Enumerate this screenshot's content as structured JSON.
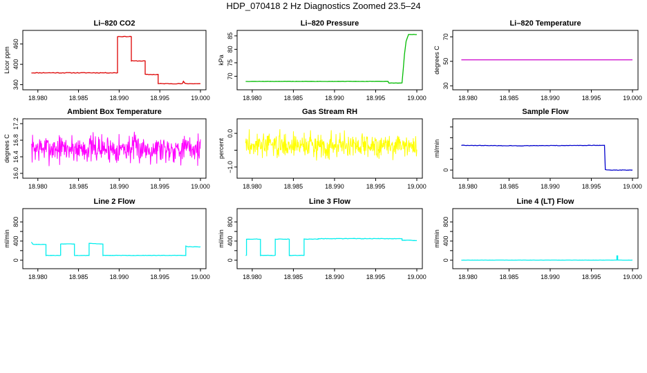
{
  "page": {
    "title": "HDP_070418  2 Hz Diagnostics Zoomed 23.5–24"
  },
  "chart_data": [
    {
      "type": "line",
      "title": "Li–820 CO2",
      "xlabel": "",
      "ylabel": "Licor ppm",
      "xlim": [
        18.979,
        19.0
      ],
      "ylim": [
        333,
        492
      ],
      "xticks": [
        18.98,
        18.985,
        18.99,
        18.995,
        19.0
      ],
      "xtick_labels": [
        "18.980",
        "18.985",
        "18.990",
        "18.995",
        "19.000"
      ],
      "yticks": [
        340,
        400,
        460
      ],
      "ytick_labels": [
        "340",
        "400",
        "460"
      ],
      "color": "#dd0000",
      "noise": 0.9,
      "series": [
        {
          "x": [
            18.9792,
            18.9898,
            18.9898,
            18.9915,
            18.9915,
            18.9932,
            18.9932,
            18.9948,
            18.9948,
            18.9978,
            18.9979,
            18.9981,
            19.0
          ]
        },
        {
          "y": [
            375,
            375,
            482,
            482,
            410,
            410,
            370,
            370,
            343,
            343,
            350,
            343,
            343
          ]
        }
      ]
    },
    {
      "type": "line",
      "title": "Li–820 Pressure",
      "xlabel": "",
      "ylabel": "kPa",
      "xlim": [
        18.979,
        19.0
      ],
      "ylim": [
        66,
        86
      ],
      "xticks": [
        18.98,
        18.985,
        18.99,
        18.995,
        19.0
      ],
      "xtick_labels": [
        "18.980",
        "18.985",
        "18.990",
        "18.995",
        "19.000"
      ],
      "yticks": [
        70,
        75,
        80,
        85
      ],
      "ytick_labels": [
        "70",
        "75",
        "80",
        "85"
      ],
      "color": "#00bb00",
      "noise": 0.05,
      "series": [
        {
          "x": [
            18.9792,
            18.9965,
            18.9966,
            18.9982,
            18.9985,
            18.9987,
            18.999,
            19.0
          ]
        },
        {
          "y": [
            68.1,
            68.1,
            67.5,
            67.5,
            78,
            83,
            85.5,
            85.5
          ]
        }
      ]
    },
    {
      "type": "line",
      "title": "Li–820 Temperature",
      "xlabel": "",
      "ylabel": "degrees C",
      "xlim": [
        18.979,
        19.0
      ],
      "ylim": [
        29,
        73
      ],
      "xticks": [
        18.98,
        18.985,
        18.99,
        18.995,
        19.0
      ],
      "xtick_labels": [
        "18.980",
        "18.985",
        "18.990",
        "18.995",
        "19.000"
      ],
      "yticks": [
        30,
        50,
        70
      ],
      "ytick_labels": [
        "30",
        "50",
        "70"
      ],
      "color": "#cc00cc",
      "noise": 0,
      "series": [
        {
          "x": [
            18.9792,
            19.0
          ]
        },
        {
          "y": [
            51.2,
            51.2
          ]
        }
      ]
    },
    {
      "type": "line",
      "title": "Ambient Box Temperature",
      "xlabel": "",
      "ylabel": "degrees C",
      "xlim": [
        18.979,
        19.0
      ],
      "ylim": [
        15.95,
        17.25
      ],
      "xticks": [
        18.98,
        18.985,
        18.99,
        18.995,
        19.0
      ],
      "xtick_labels": [
        "18.980",
        "18.985",
        "18.990",
        "18.995",
        "19.000"
      ],
      "yticks": [
        16.0,
        16.4,
        16.8,
        17.2
      ],
      "ytick_labels": [
        "16.0",
        "16.4",
        "16.8",
        "17.2"
      ],
      "color": "#ff00ff",
      "noise": 0,
      "jitter": {
        "center": 16.6,
        "amp": 0.5,
        "n": 430,
        "seed": 7
      }
    },
    {
      "type": "line",
      "title": "Gas Stream RH",
      "xlabel": "",
      "ylabel": "percent",
      "xlim": [
        18.979,
        19.0
      ],
      "ylim": [
        -1.25,
        0.35
      ],
      "xticks": [
        18.98,
        18.985,
        18.99,
        18.995,
        19.0
      ],
      "xtick_labels": [
        "18.980",
        "18.985",
        "18.990",
        "18.995",
        "19.000"
      ],
      "yticks": [
        -1.0,
        -0.5,
        0.0
      ],
      "ytick_labels": [
        "−1.0",
        "",
        "0.0"
      ],
      "color": "#ffff00",
      "noise": 0,
      "jitter": {
        "center": -0.35,
        "amp": 0.55,
        "n": 430,
        "seed": 3
      }
    },
    {
      "type": "line",
      "title": "Sample Flow",
      "xlabel": "",
      "ylabel": "ml/min",
      "xlim": [
        18.979,
        19.0
      ],
      "ylim": [
        -10,
        90
      ],
      "xticks": [
        18.98,
        18.985,
        18.99,
        18.995,
        19.0
      ],
      "xtick_labels": [
        "18.980",
        "18.985",
        "18.990",
        "18.995",
        "19.000"
      ],
      "yticks": [
        0,
        20,
        40,
        60,
        80
      ],
      "ytick_labels": [
        "0",
        "",
        "",
        "",
        ""
      ],
      "color": "#0000cc",
      "noise": 0.4,
      "series": [
        {
          "x": [
            18.9792,
            18.986,
            18.996,
            18.9966,
            18.9967,
            18.997,
            19.0
          ]
        },
        {
          "y": [
            46,
            45,
            46,
            46,
            1,
            0,
            0
          ]
        }
      ]
    },
    {
      "type": "line",
      "title": "Line 2 Flow",
      "xlabel": "",
      "ylabel": "ml/min",
      "xlim": [
        18.979,
        19.0
      ],
      "ylim": [
        -120,
        1020
      ],
      "xticks": [
        18.98,
        18.985,
        18.99,
        18.995,
        19.0
      ],
      "xtick_labels": [
        "18.980",
        "18.985",
        "18.990",
        "18.995",
        "19.000"
      ],
      "yticks": [
        0,
        200,
        400,
        600,
        800
      ],
      "ytick_labels": [
        "0",
        "",
        "400",
        "",
        "800"
      ],
      "color": "#00eeee",
      "noise": 4,
      "series": [
        {
          "x": [
            18.9792,
            18.9794,
            18.981,
            18.981,
            18.9828,
            18.9828,
            18.9845,
            18.9845,
            18.9863,
            18.9863,
            18.988,
            18.988,
            18.9982,
            18.9982,
            18.9985,
            19.0
          ]
        },
        {
          "y": [
            380,
            330,
            330,
            100,
            100,
            340,
            340,
            100,
            100,
            350,
            340,
            100,
            100,
            300,
            280,
            280
          ]
        }
      ]
    },
    {
      "type": "line",
      "title": "Line 3 Flow",
      "xlabel": "",
      "ylabel": "ml/min",
      "xlim": [
        18.979,
        19.0
      ],
      "ylim": [
        -120,
        1020
      ],
      "xticks": [
        18.98,
        18.985,
        18.99,
        18.995,
        19.0
      ],
      "xtick_labels": [
        "18.980",
        "18.985",
        "18.990",
        "18.995",
        "19.000"
      ],
      "yticks": [
        0,
        200,
        400,
        600,
        800
      ],
      "ytick_labels": [
        "0",
        "",
        "400",
        "",
        "800"
      ],
      "color": "#00eeee",
      "noise": 4,
      "series": [
        {
          "x": [
            18.9792,
            18.9793,
            18.9793,
            18.981,
            18.981,
            18.9828,
            18.9828,
            18.9845,
            18.9845,
            18.9863,
            18.9863,
            18.988,
            18.988,
            18.9982,
            18.9982,
            19.0
          ]
        },
        {
          "y": [
            100,
            100,
            440,
            440,
            100,
            100,
            440,
            440,
            100,
            100,
            440,
            440,
            450,
            450,
            420,
            410
          ]
        }
      ]
    },
    {
      "type": "line",
      "title": "Line 4 (LT) Flow",
      "xlabel": "",
      "ylabel": "ml/min",
      "xlim": [
        18.979,
        19.0
      ],
      "ylim": [
        -120,
        1020
      ],
      "xticks": [
        18.98,
        18.985,
        18.99,
        18.995,
        19.0
      ],
      "xtick_labels": [
        "18.980",
        "18.985",
        "18.990",
        "18.995",
        "19.000"
      ],
      "yticks": [
        0,
        200,
        400,
        600,
        800
      ],
      "ytick_labels": [
        "0",
        "",
        "400",
        "",
        "800"
      ],
      "color": "#00eeee",
      "noise": 1,
      "series": [
        {
          "x": [
            18.9792,
            18.9981,
            18.9981,
            18.9982,
            18.9982,
            19.0
          ]
        },
        {
          "y": [
            2,
            2,
            90,
            90,
            2,
            2
          ]
        }
      ]
    }
  ]
}
